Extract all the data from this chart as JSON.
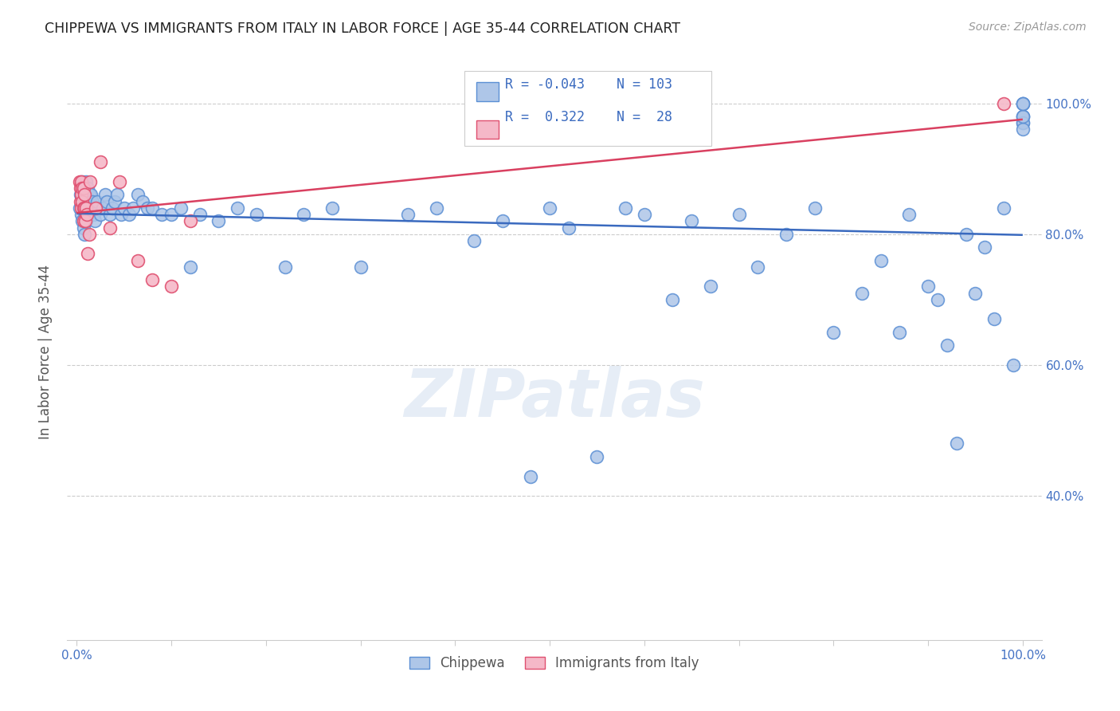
{
  "title": "CHIPPEWA VS IMMIGRANTS FROM ITALY IN LABOR FORCE | AGE 35-44 CORRELATION CHART",
  "source": "Source: ZipAtlas.com",
  "ylabel": "In Labor Force | Age 35-44",
  "xlim": [
    -0.01,
    1.02
  ],
  "ylim": [
    0.18,
    1.06
  ],
  "y_ticks": [
    0.4,
    0.6,
    0.8,
    1.0
  ],
  "y_tick_labels": [
    "40.0%",
    "60.0%",
    "80.0%",
    "100.0%"
  ],
  "x_ticks": [
    0.0,
    0.1,
    0.2,
    0.3,
    0.4,
    0.5,
    0.6,
    0.7,
    0.8,
    0.9,
    1.0
  ],
  "x_tick_labels": [
    "0.0%",
    "",
    "",
    "",
    "",
    "",
    "",
    "",
    "",
    "",
    "100.0%"
  ],
  "chippewa_color": "#aec6e8",
  "chippewa_edge_color": "#5b8fd4",
  "italy_color": "#f5b8c8",
  "italy_edge_color": "#e05070",
  "line_blue": "#3a6abf",
  "line_pink": "#d94060",
  "R_chippewa": -0.043,
  "N_chippewa": 103,
  "R_italy": 0.322,
  "N_italy": 28,
  "watermark": "ZIPatlas",
  "background_color": "#ffffff",
  "grid_color": "#cccccc",
  "tick_color": "#4472c4",
  "chippewa_x": [
    0.003,
    0.004,
    0.005,
    0.005,
    0.006,
    0.006,
    0.006,
    0.007,
    0.007,
    0.007,
    0.008,
    0.008,
    0.008,
    0.009,
    0.009,
    0.009,
    0.01,
    0.01,
    0.01,
    0.011,
    0.011,
    0.012,
    0.012,
    0.013,
    0.013,
    0.014,
    0.015,
    0.016,
    0.017,
    0.018,
    0.019,
    0.02,
    0.022,
    0.025,
    0.028,
    0.03,
    0.032,
    0.035,
    0.038,
    0.04,
    0.043,
    0.047,
    0.05,
    0.055,
    0.06,
    0.065,
    0.07,
    0.075,
    0.08,
    0.09,
    0.1,
    0.11,
    0.12,
    0.13,
    0.15,
    0.17,
    0.19,
    0.22,
    0.24,
    0.27,
    0.3,
    0.35,
    0.38,
    0.42,
    0.45,
    0.48,
    0.5,
    0.52,
    0.55,
    0.58,
    0.6,
    0.63,
    0.65,
    0.67,
    0.7,
    0.72,
    0.75,
    0.78,
    0.8,
    0.83,
    0.85,
    0.87,
    0.88,
    0.9,
    0.91,
    0.92,
    0.93,
    0.94,
    0.95,
    0.96,
    0.97,
    0.98,
    0.99,
    1.0,
    1.0,
    1.0,
    1.0,
    1.0,
    1.0,
    1.0,
    1.0,
    1.0,
    1.0
  ],
  "chippewa_y": [
    0.84,
    0.86,
    0.87,
    0.83,
    0.88,
    0.85,
    0.82,
    0.87,
    0.84,
    0.81,
    0.86,
    0.84,
    0.8,
    0.87,
    0.85,
    0.83,
    0.88,
    0.85,
    0.82,
    0.86,
    0.83,
    0.87,
    0.84,
    0.86,
    0.83,
    0.85,
    0.86,
    0.84,
    0.85,
    0.83,
    0.82,
    0.84,
    0.85,
    0.83,
    0.84,
    0.86,
    0.85,
    0.83,
    0.84,
    0.85,
    0.86,
    0.83,
    0.84,
    0.83,
    0.84,
    0.86,
    0.85,
    0.84,
    0.84,
    0.83,
    0.83,
    0.84,
    0.75,
    0.83,
    0.82,
    0.84,
    0.83,
    0.75,
    0.83,
    0.84,
    0.75,
    0.83,
    0.84,
    0.79,
    0.82,
    0.43,
    0.84,
    0.81,
    0.46,
    0.84,
    0.83,
    0.7,
    0.82,
    0.72,
    0.83,
    0.75,
    0.8,
    0.84,
    0.65,
    0.71,
    0.76,
    0.65,
    0.83,
    0.72,
    0.7,
    0.63,
    0.48,
    0.8,
    0.71,
    0.78,
    0.67,
    0.84,
    0.6,
    0.98,
    0.97,
    1.0,
    1.0,
    0.98,
    0.97,
    0.96,
    0.98,
    1.0,
    1.0
  ],
  "italy_x": [
    0.003,
    0.004,
    0.004,
    0.005,
    0.005,
    0.005,
    0.006,
    0.006,
    0.007,
    0.007,
    0.007,
    0.008,
    0.008,
    0.009,
    0.01,
    0.011,
    0.012,
    0.013,
    0.014,
    0.02,
    0.025,
    0.035,
    0.045,
    0.065,
    0.08,
    0.1,
    0.12,
    0.98
  ],
  "italy_y": [
    0.88,
    0.87,
    0.85,
    0.88,
    0.86,
    0.84,
    0.87,
    0.85,
    0.87,
    0.84,
    0.82,
    0.86,
    0.84,
    0.82,
    0.84,
    0.83,
    0.77,
    0.8,
    0.88,
    0.84,
    0.91,
    0.81,
    0.88,
    0.76,
    0.73,
    0.72,
    0.82,
    1.0
  ]
}
